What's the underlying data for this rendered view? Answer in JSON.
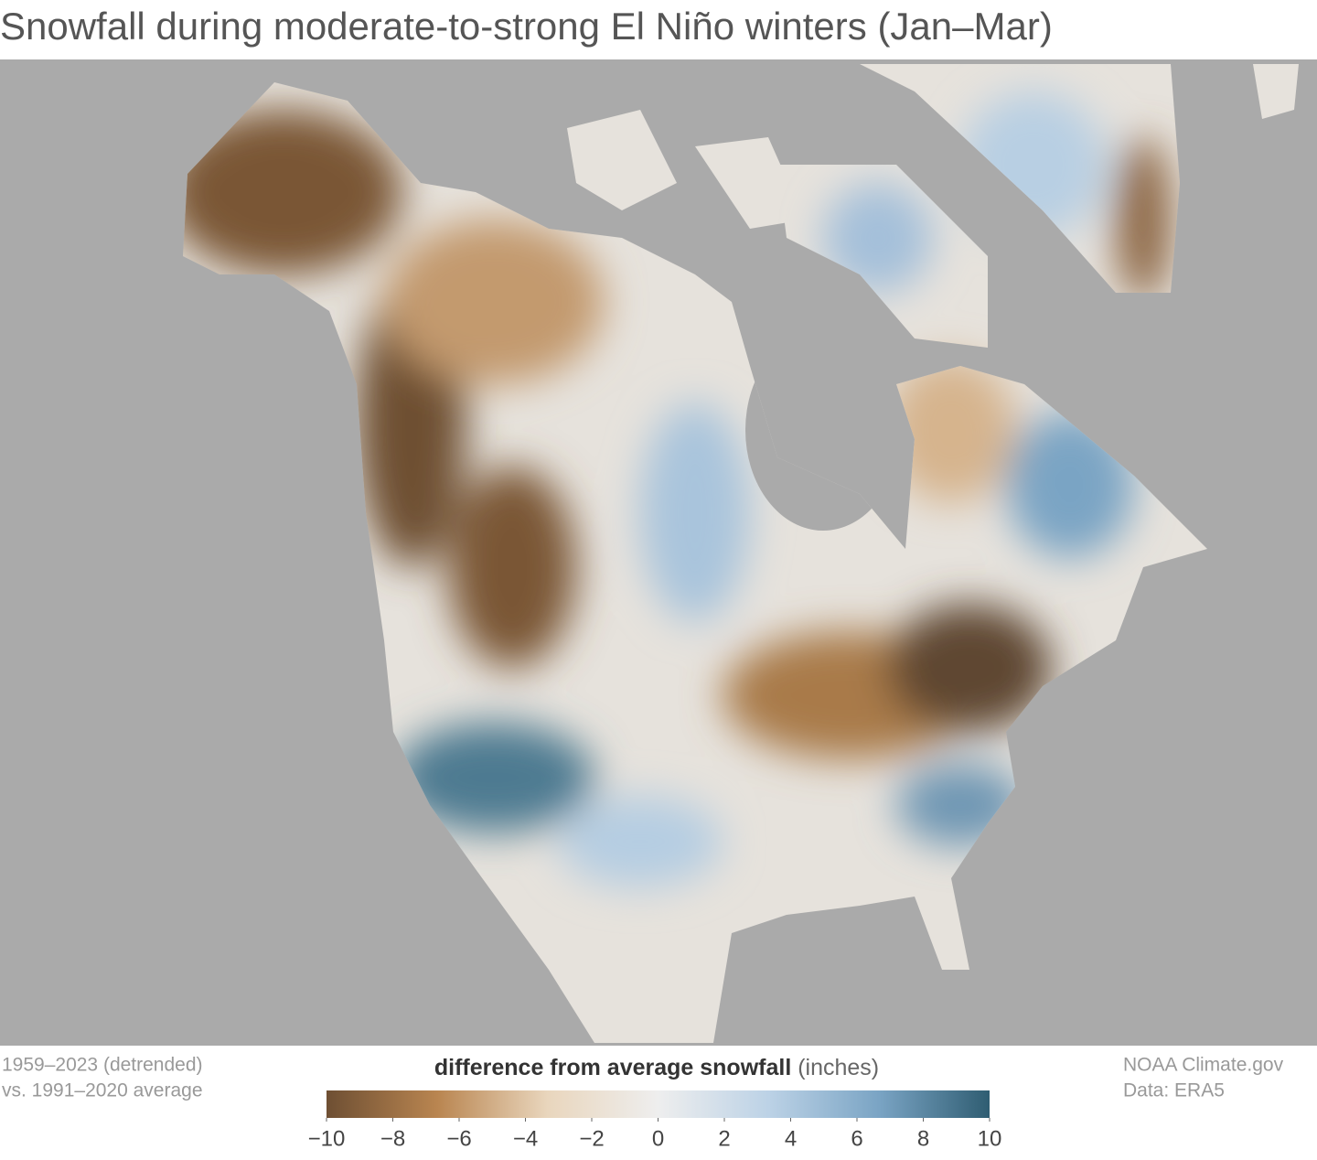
{
  "header": {
    "title": "Snowfall during moderate-to-strong El Niño winters (Jan–Mar)"
  },
  "footer": {
    "period": [
      "1959–2023 (detrended)",
      "vs. 1991–2020 average"
    ],
    "credits": [
      "NOAA Climate.gov",
      "Data: ERA5"
    ]
  },
  "legend": {
    "title": "difference from average snowfall",
    "unit": "(inches)",
    "colors": [
      "#6e4f33",
      "#b98550",
      "#e9d6bd",
      "#eeeeee",
      "#bcd2e6",
      "#7aa4c4",
      "#2f5d72"
    ],
    "ticks": [
      {
        "value": -10,
        "label": "−10"
      },
      {
        "value": -8,
        "label": "−8"
      },
      {
        "value": -6,
        "label": "−6"
      },
      {
        "value": -4,
        "label": "−4"
      },
      {
        "value": -2,
        "label": "−2"
      },
      0,
      2,
      4,
      6,
      8,
      10
    ]
  }
}
